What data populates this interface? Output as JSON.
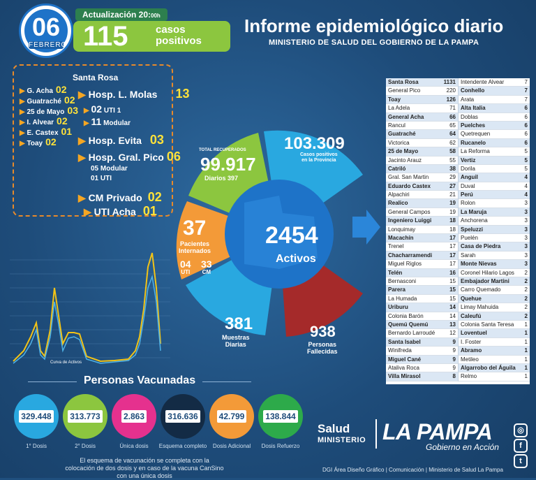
{
  "header": {
    "day": "06",
    "month": "FEBRERO",
    "update_label": "Actualización 20:",
    "update_suffix": "00h",
    "cases_number": "115",
    "cases_line1": "casos",
    "cases_line2": "positivos",
    "title": "Informe epidemiológico diario",
    "subtitle": "MINISTERIO DE SALUD DEL GOBIERNO DE LA PAMPA"
  },
  "hospitals": {
    "header": "Santa Rosa",
    "left": [
      {
        "name": "G. Acha",
        "n": "02"
      },
      {
        "name": "Guatraché",
        "n": "02"
      },
      {
        "name": "25 de Mayo",
        "n": "03"
      },
      {
        "name": "I. Alvear",
        "n": "02"
      },
      {
        "name": "E. Castex",
        "n": "01"
      },
      {
        "name": "Toay",
        "n": "02"
      }
    ],
    "molas": {
      "name": "Hosp. L. Molas",
      "n": "13",
      "uti": "02",
      "uti_label": "UTI 1",
      "mod": "11",
      "mod_label": "Modular"
    },
    "evita": {
      "name": "Hosp. Evita",
      "n": "03"
    },
    "pico": {
      "name": "Hosp. Gral. Pico",
      "n": "06",
      "l1": "05 Modular",
      "l2": "01 UTI"
    },
    "privado": {
      "name": "CM Privado",
      "n": "02"
    },
    "acha": {
      "name": "UTI Acha",
      "n": "01"
    }
  },
  "chart_label": "Curva de Activos",
  "center": {
    "recovered_label": "TOTAL RECUPERADOS",
    "recovered": "99.917",
    "recovered_daily_label": "Diarios",
    "recovered_daily": "397",
    "positives": "103.309",
    "positives_label1": "Casos positivos",
    "positives_label2": "en la Provincia",
    "interned": "37",
    "interned_label1": "Pacientes",
    "interned_label2": "Internados",
    "uti": "04",
    "uti_label": "UTI",
    "cm": "33",
    "cm_label": "CM",
    "active": "2454",
    "active_label": "Activos",
    "samples": "381",
    "samples_label1": "Muestras",
    "samples_label2": "Diarias",
    "deaths": "938",
    "deaths_label1": "Personas",
    "deaths_label2": "Fallecidas"
  },
  "vaccines": {
    "title": "Personas Vacunadas",
    "items": [
      {
        "value": "329.448",
        "label": "1° Dosis",
        "color": "#29a8e0"
      },
      {
        "value": "313.773",
        "label": "2° Dosis",
        "color": "#8cc63f"
      },
      {
        "value": "2.863",
        "label": "Única dosis",
        "color": "#e5318e"
      },
      {
        "value": "316.636",
        "label": "Esquema completo",
        "color": "#132b45"
      },
      {
        "value": "42.799",
        "label": "Dosis Adicional",
        "color": "#f39a38"
      },
      {
        "value": "138.844",
        "label": "Dosis Refuerzo",
        "color": "#2daa4a"
      }
    ],
    "note": "El esquema de vacunación se completa con la colocación de dos dosis y en caso de la vacuna CanSino con una única dosis"
  },
  "table_left": [
    {
      "n": "Santa Rosa",
      "v": "1131",
      "b": true
    },
    {
      "n": "General Pico",
      "v": "220"
    },
    {
      "n": "Toay",
      "v": "126",
      "b": true
    },
    {
      "n": "La Adela",
      "v": "71"
    },
    {
      "n": "General Acha",
      "v": "66",
      "b": true
    },
    {
      "n": "Rancul",
      "v": "65"
    },
    {
      "n": "Guatraché",
      "v": "64",
      "b": true
    },
    {
      "n": "Victorica",
      "v": "62"
    },
    {
      "n": "25 de Mayo",
      "v": "58",
      "b": true
    },
    {
      "n": "Jacinto Arauz",
      "v": "55"
    },
    {
      "n": "Catriló",
      "v": "38",
      "b": true
    },
    {
      "n": "Gral. San Martin",
      "v": "29"
    },
    {
      "n": "Eduardo Castex",
      "v": "27",
      "b": true
    },
    {
      "n": "Alpachiri",
      "v": "21"
    },
    {
      "n": "Realico",
      "v": "19",
      "b": true
    },
    {
      "n": "General Campos",
      "v": "19"
    },
    {
      "n": "Ingeniero Luiggi",
      "v": "18",
      "b": true
    },
    {
      "n": "Lonquimay",
      "v": "18"
    },
    {
      "n": "Macachín",
      "v": "17",
      "b": true
    },
    {
      "n": "Trenel",
      "v": "17"
    },
    {
      "n": "Chacharramendi",
      "v": "17",
      "b": true
    },
    {
      "n": "Miguel Riglos",
      "v": "17"
    },
    {
      "n": "Telén",
      "v": "16",
      "b": true
    },
    {
      "n": "Bernasconi",
      "v": "15"
    },
    {
      "n": "Parera",
      "v": "15",
      "b": true
    },
    {
      "n": "La Humada",
      "v": "15"
    },
    {
      "n": "Uriburu",
      "v": "14",
      "b": true
    },
    {
      "n": "Colonia Barón",
      "v": "14"
    },
    {
      "n": "Quemú Quemú",
      "v": "13",
      "b": true
    },
    {
      "n": "Bernardo Larroudé",
      "v": "12"
    },
    {
      "n": "Santa Isabel",
      "v": "9",
      "b": true
    },
    {
      "n": "Winifreda",
      "v": "9"
    },
    {
      "n": "Miguel Cané",
      "v": "9",
      "b": true
    },
    {
      "n": "Ataliva Roca",
      "v": "9"
    },
    {
      "n": "Villa Mirasol",
      "v": "8",
      "b": true
    }
  ],
  "table_right": [
    {
      "n": "Intendente Alvear",
      "v": "7"
    },
    {
      "n": "Conhello",
      "v": "7",
      "b": true
    },
    {
      "n": "Arata",
      "v": "7"
    },
    {
      "n": "Alta Italia",
      "v": "6",
      "b": true
    },
    {
      "n": "Doblas",
      "v": "6"
    },
    {
      "n": "Puelches",
      "v": "6",
      "b": true
    },
    {
      "n": "Quetrequen",
      "v": "6"
    },
    {
      "n": "Rucanelo",
      "v": "6",
      "b": true
    },
    {
      "n": "La Reforma",
      "v": "5"
    },
    {
      "n": "Vertiz",
      "v": "5",
      "b": true
    },
    {
      "n": "Dorila",
      "v": "5"
    },
    {
      "n": "Anguil",
      "v": "4",
      "b": true
    },
    {
      "n": "Duval",
      "v": "4"
    },
    {
      "n": "Perú",
      "v": "4",
      "b": true
    },
    {
      "n": "Rolon",
      "v": "3"
    },
    {
      "n": "La Maruja",
      "v": "3",
      "b": true
    },
    {
      "n": "Anchorena",
      "v": "3"
    },
    {
      "n": "Speluzzi",
      "v": "3",
      "b": true
    },
    {
      "n": "Puelén",
      "v": "3"
    },
    {
      "n": "Casa de Piedra",
      "v": "3",
      "b": true
    },
    {
      "n": "Sarah",
      "v": "3"
    },
    {
      "n": "Monte Nievas",
      "v": "3",
      "b": true
    },
    {
      "n": "Coronel Hilario Lagos",
      "v": "2"
    },
    {
      "n": "Embajador Martini",
      "v": "2",
      "b": true
    },
    {
      "n": "Carro Quemado",
      "v": "2"
    },
    {
      "n": "Quehue",
      "v": "2",
      "b": true
    },
    {
      "n": "Limay Mahuida",
      "v": "2"
    },
    {
      "n": "Caleufú",
      "v": "2",
      "b": true
    },
    {
      "n": "Colonia Santa Teresa",
      "v": "1"
    },
    {
      "n": "Loventuel",
      "v": "1",
      "b": true
    },
    {
      "n": "I. Foster",
      "v": "1"
    },
    {
      "n": "Abramo",
      "v": "1",
      "b": true
    },
    {
      "n": "Metileo",
      "v": "1"
    },
    {
      "n": "Algarrobo del Águila",
      "v": "1",
      "b": true
    },
    {
      "n": "Relmo",
      "v": "1"
    }
  ],
  "footer": {
    "salud": "Salud",
    "ministerio": "MINISTERIO",
    "lapampa": "LA PAMPA",
    "gobierno": "Gobierno en Acción",
    "credit": "DGI Área Diseño Gráfico  | Comunicación | Ministerio de Salud La Pampa",
    "social": [
      {
        "icon": "instagram-icon",
        "glyph": "◎"
      },
      {
        "icon": "facebook-icon",
        "glyph": "f"
      },
      {
        "icon": "twitter-icon",
        "glyph": "t"
      }
    ]
  }
}
